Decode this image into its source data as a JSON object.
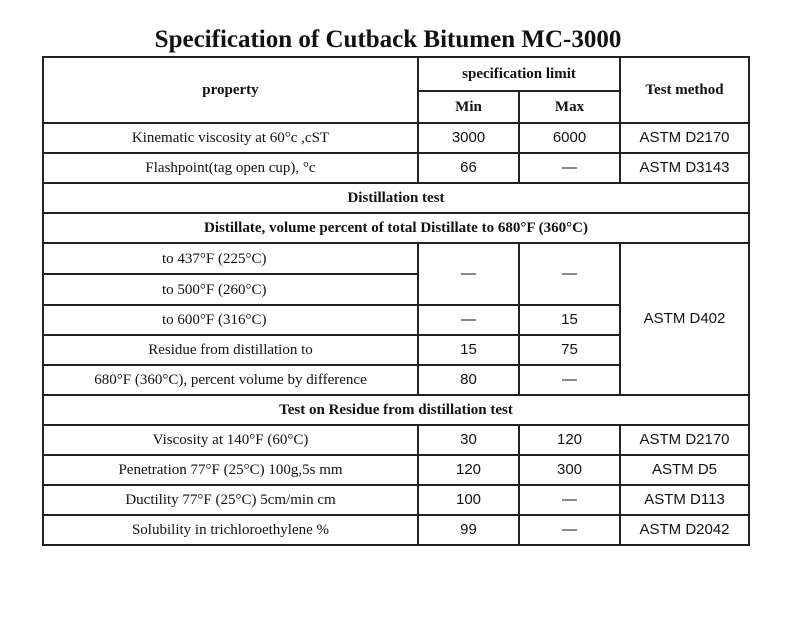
{
  "title": "Specification of Cutback Bitumen MC-3000",
  "header": {
    "property": "property",
    "spec_limit": "specification limit",
    "min": "Min",
    "max": "Max",
    "test_method": "Test method"
  },
  "rows_top": [
    {
      "property": "Kinematic viscosity at 60°c ,cST",
      "min": "3000",
      "max": "6000",
      "method": "ASTM D2170"
    },
    {
      "property": "Flashpoint(tag open cup), °c",
      "min": "66",
      "max": "—",
      "method": "ASTM D3143"
    }
  ],
  "distillation_title": "Distillation test",
  "distillate_title": "Distillate, volume percent of total Distillate to 680°F (360°C)",
  "distillation_rows": [
    {
      "property": "to 437°F (225°C)"
    },
    {
      "property": "to 500°F (260°C)"
    },
    {
      "property": "to 600°F (316°C)",
      "min": "—",
      "max": "15"
    },
    {
      "property": "Residue from distillation to",
      "min": "15",
      "max": "75"
    },
    {
      "property": "680°F (360°C), percent volume by difference",
      "min": "80",
      "max": "—"
    }
  ],
  "distillation_merged": {
    "min": "—",
    "max": "—",
    "method": "ASTM D402"
  },
  "residue_title": "Test on Residue from distillation test",
  "residue_rows": [
    {
      "property": "Viscosity at 140°F (60°C)",
      "min": "30",
      "max": "120",
      "method": "ASTM D2170"
    },
    {
      "property": "Penetration 77°F (25°C) 100g,5s mm",
      "min": "120",
      "max": "300",
      "method": "ASTM D5"
    },
    {
      "property": "Ductility 77°F (25°C) 5cm/min cm",
      "min": "100",
      "max": "—",
      "method": "ASTM D113"
    },
    {
      "property": "Solubility in trichloroethylene %",
      "min": "99",
      "max": "—",
      "method": "ASTM D2042"
    }
  ]
}
